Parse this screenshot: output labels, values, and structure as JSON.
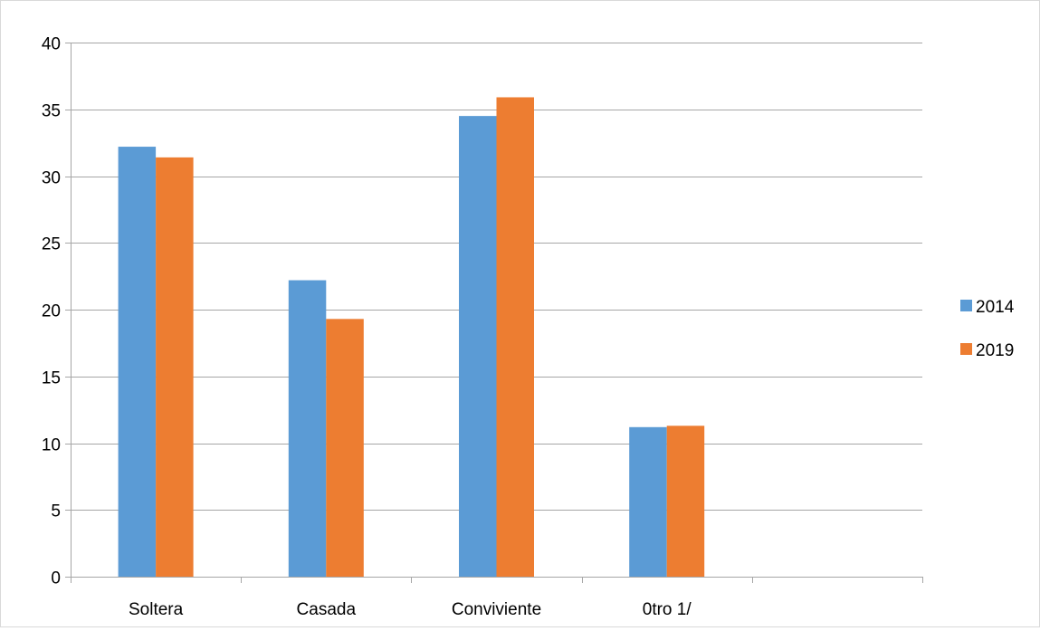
{
  "chart_data": {
    "type": "bar",
    "title": "",
    "xlabel": "",
    "ylabel": "",
    "categories": [
      "Soltera",
      "Casada",
      "Conviviente",
      "0tro 1/",
      ""
    ],
    "series": [
      {
        "name": "2014",
        "color": "#5b9bd5",
        "values": [
          32.2,
          22.2,
          34.5,
          11.2,
          null
        ]
      },
      {
        "name": "2019",
        "color": "#ed7d31",
        "values": [
          31.4,
          19.3,
          35.9,
          11.3,
          null
        ]
      }
    ],
    "ylim": [
      0,
      40
    ],
    "yticks": [
      0,
      5,
      10,
      15,
      20,
      25,
      30,
      35,
      40
    ],
    "grid": true,
    "legend_position": "right"
  }
}
